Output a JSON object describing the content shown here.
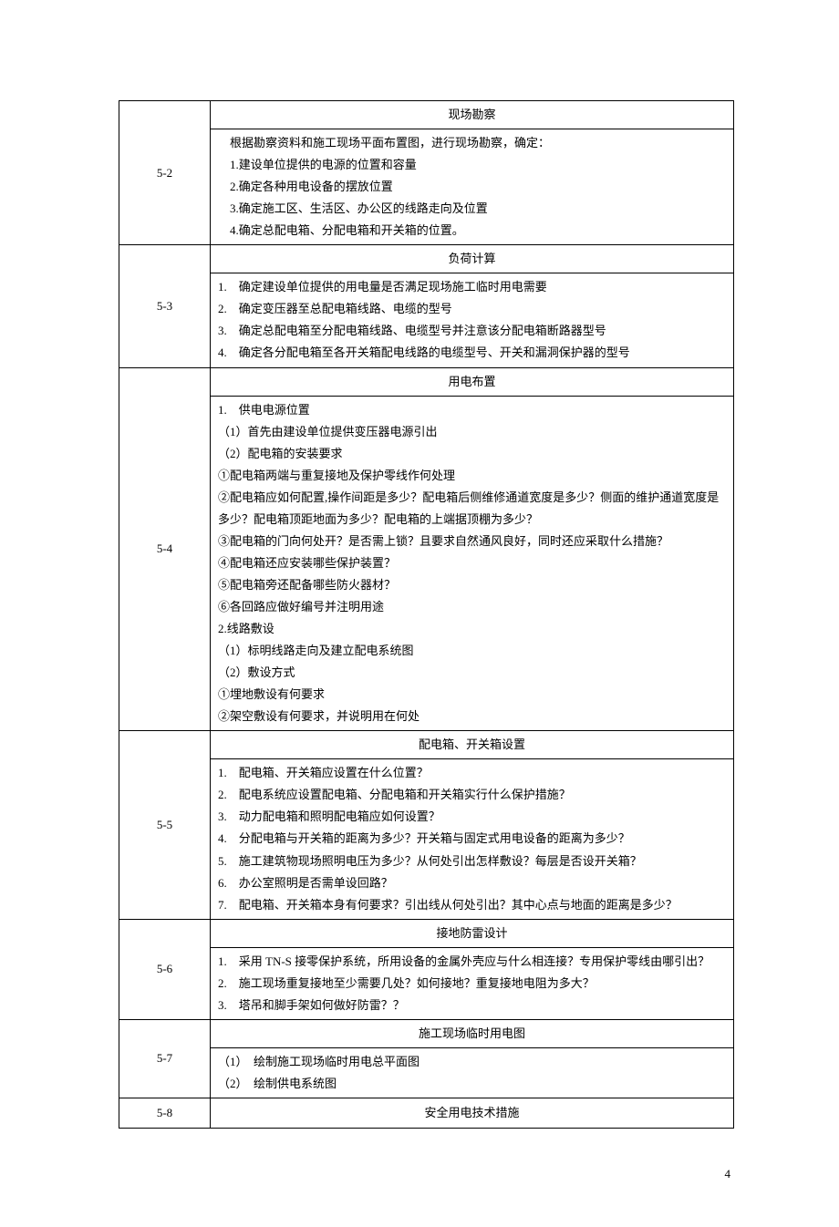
{
  "pageNumber": "4",
  "sections": [
    {
      "id": "5-2",
      "header": "现场勘察",
      "lines": [
        {
          "text": "根据勘察资料和施工现场平面布置图，进行现场勘察，确定：",
          "cls": "indent-1"
        },
        {
          "text": "1.建设单位提供的电源的位置和容量",
          "cls": "indent-1"
        },
        {
          "text": "2.确定各种用电设备的摆放位置",
          "cls": "indent-1"
        },
        {
          "text": "3.确定施工区、生活区、办公区的线路走向及位置",
          "cls": "indent-1"
        },
        {
          "text": "4.确定总配电箱、分配电箱和开关箱的位置。",
          "cls": "indent-1"
        }
      ]
    },
    {
      "id": "5-3",
      "header": "负荷计算",
      "lines": [
        {
          "text": "1.　确定建设单位提供的用电量是否满足现场施工临时用电需要",
          "cls": "num-list"
        },
        {
          "text": "2.　确定变压器至总配电箱线路、电缆的型号",
          "cls": "num-list"
        },
        {
          "text": "3.　确定总配电箱至分配电箱线路、电缆型号并注意该分配电箱断路器型号",
          "cls": "num-list"
        },
        {
          "text": "4.　确定各分配电箱至各开关箱配电线路的电缆型号、开关和漏洞保护器的型号",
          "cls": "num-list"
        }
      ]
    },
    {
      "id": "5-4",
      "header": "用电布置",
      "lines": [
        {
          "text": "1.　供电电源位置",
          "cls": "num-list"
        },
        {
          "text": "（1）首先由建设单位提供变压器电源引出",
          "cls": ""
        },
        {
          "text": "（2）配电箱的安装要求",
          "cls": ""
        },
        {
          "text": "①配电箱两端与重复接地及保护零线作何处理",
          "cls": ""
        },
        {
          "text": "②配电箱应如何配置,操作间距是多少？配电箱后侧维修通道宽度是多少？侧面的维护通道宽度是多少？配电箱顶距地面为多少？配电箱的上端据顶棚为多少？",
          "cls": ""
        },
        {
          "text": "③配电箱的门向何处开？是否需上锁？且要求自然通风良好，同时还应采取什么措施？",
          "cls": ""
        },
        {
          "text": "④配电箱还应安装哪些保护装置？",
          "cls": ""
        },
        {
          "text": "⑤配电箱旁还配备哪些防火器材？",
          "cls": ""
        },
        {
          "text": "⑥各回路应做好编号并注明用途",
          "cls": ""
        },
        {
          "text": "2.线路敷设",
          "cls": ""
        },
        {
          "text": "（1）标明线路走向及建立配电系统图",
          "cls": ""
        },
        {
          "text": "（2）敷设方式",
          "cls": ""
        },
        {
          "text": "①埋地敷设有何要求",
          "cls": ""
        },
        {
          "text": "②架空敷设有何要求，并说明用在何处",
          "cls": ""
        }
      ]
    },
    {
      "id": "5-5",
      "header": "配电箱、开关箱设置",
      "lines": [
        {
          "text": "1.　配电箱、开关箱应设置在什么位置？",
          "cls": "num-list"
        },
        {
          "text": "2.　配电系统应设置配电箱、分配电箱和开关箱实行什么保护措施？",
          "cls": "num-list"
        },
        {
          "text": "3.　动力配电箱和照明配电箱应如何设置？",
          "cls": "num-list"
        },
        {
          "text": "4.　分配电箱与开关箱的距离为多少？开关箱与固定式用电设备的距离为多少？",
          "cls": "num-list"
        },
        {
          "text": "5.　施工建筑物现场照明电压为多少？从何处引出怎样敷设？每层是否设开关箱？",
          "cls": "num-list"
        },
        {
          "text": "6.　办公室照明是否需单设回路？",
          "cls": "num-list"
        },
        {
          "text": "7.　配电箱、开关箱本身有何要求？引出线从何处引出？其中心点与地面的距离是多少？",
          "cls": "num-list"
        }
      ]
    },
    {
      "id": "5-6",
      "header": "接地防雷设计",
      "lines": [
        {
          "text": "1.　采用 TN-S 接零保护系统，所用设备的金属外壳应与什么相连接？专用保护零线由哪引出？",
          "cls": "num-list"
        },
        {
          "text": "2.　施工现场重复接地至少需要几处？如何接地？重复接地电阻为多大？",
          "cls": "num-list"
        },
        {
          "text": "3.　塔吊和脚手架如何做好防雷？？",
          "cls": "num-list"
        }
      ]
    },
    {
      "id": "5-7",
      "header": "施工现场临时用电图",
      "lines": [
        {
          "text": "（1）　绘制施工现场临时用电总平面图",
          "cls": ""
        },
        {
          "text": "（2）　绘制供电系统图",
          "cls": ""
        }
      ]
    },
    {
      "id": "5-8",
      "header": "安全用电技术措施",
      "lines": []
    }
  ]
}
